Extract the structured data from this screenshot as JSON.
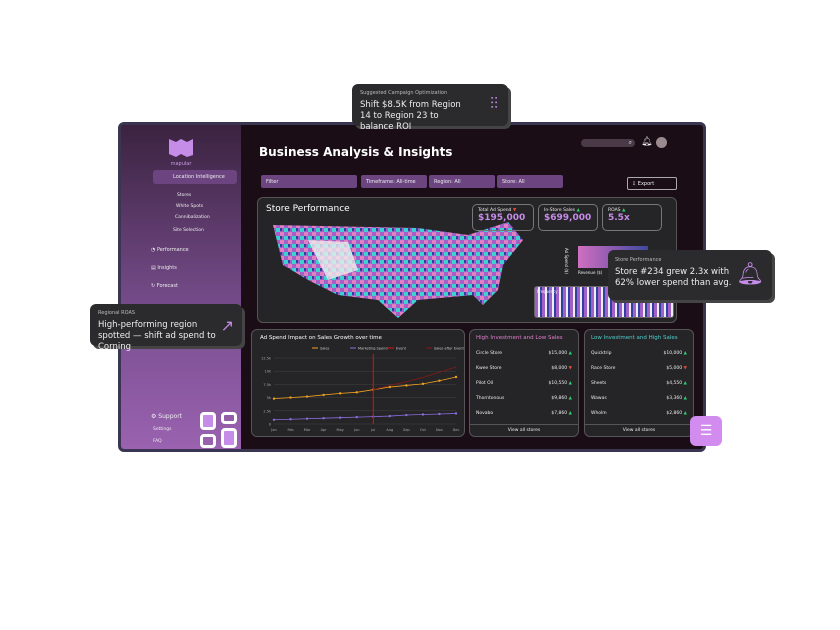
{
  "app": {
    "logo": "mapular",
    "title": "Business Analysis & Insights"
  },
  "sidebar": {
    "section": "Location Intelligence",
    "sub_items": [
      "Stores",
      "White Spots",
      "Cannibalization",
      "Site Selection"
    ],
    "nav": [
      "Performance",
      "Insights",
      "Forecast"
    ],
    "support": "Support",
    "support_items": [
      "Settings",
      "FAQ"
    ]
  },
  "toolbar": {
    "filter": "Filter",
    "timeframe": "Timeframe: All-time",
    "region": "Region: All",
    "store": "Store: All",
    "export": "Export"
  },
  "store_performance": {
    "title": "Store Performance",
    "kpis": [
      {
        "label": "Total Ad Spend",
        "value": "$195,000",
        "trend": "down"
      },
      {
        "label": "In-Store Sales",
        "value": "$699,000",
        "trend": "up"
      },
      {
        "label": "ROAS",
        "value": "5.5x",
        "trend": "up"
      }
    ],
    "legend_y": "Ad Spend ($)",
    "legend_x": "Revenue ($)",
    "frequency": "Frequency"
  },
  "chart_data": {
    "type": "line",
    "title": "Ad Spend Impact on Sales Growth over time",
    "categories": [
      "Jan",
      "Feb",
      "Mar",
      "Apr",
      "May",
      "Jun",
      "Jul",
      "Aug",
      "Sep",
      "Oct",
      "Nov",
      "Dec"
    ],
    "yticks": [
      "0",
      "2.5k",
      "5k",
      "7.5k",
      "10k",
      "12.5k"
    ],
    "ylim": [
      0,
      12500
    ],
    "grid": true,
    "legend_placement": "top",
    "series": [
      {
        "name": "Sales",
        "color": "#f0a020",
        "values": [
          4800,
          5000,
          5200,
          5500,
          5800,
          6000,
          6500,
          7000,
          7300,
          7600,
          8200,
          8900
        ]
      },
      {
        "name": "Marketing Spend",
        "color": "#8a6ee0",
        "values": [
          800,
          900,
          1000,
          1100,
          1200,
          1300,
          1400,
          1500,
          1700,
          1800,
          1900,
          2000
        ]
      },
      {
        "name": "Event",
        "color": "#e01010",
        "x": "Jul"
      },
      {
        "name": "Sales after Event",
        "color": "#8a1a1a",
        "values": [
          null,
          null,
          null,
          null,
          null,
          null,
          6500,
          7300,
          8000,
          8800,
          9800,
          10800
        ]
      }
    ]
  },
  "high_invest": {
    "title": "High Investment and Low Sales",
    "stores": [
      {
        "name": "Circle Store",
        "value": "$15,000",
        "trend": "up"
      },
      {
        "name": "Kwee Store",
        "value": "$8,000",
        "trend": "down"
      },
      {
        "name": "Pilot Oil",
        "value": "$10,550",
        "trend": "up"
      },
      {
        "name": "Thorntonous",
        "value": "$9,860",
        "trend": "up"
      },
      {
        "name": "Novabo",
        "value": "$7,860",
        "trend": "up"
      }
    ],
    "view": "View all stores"
  },
  "low_invest": {
    "title": "Low Investment and High Sales",
    "stores": [
      {
        "name": "Quicktrip",
        "value": "$10,000",
        "trend": "up"
      },
      {
        "name": "Race Store",
        "value": "$5,000",
        "trend": "down"
      },
      {
        "name": "Sheets",
        "value": "$4,550",
        "trend": "up"
      },
      {
        "name": "Wawas",
        "value": "$3,360",
        "trend": "up"
      },
      {
        "name": "Wholm",
        "value": "$2,860",
        "trend": "up"
      }
    ],
    "view": "View all stores"
  },
  "cards": {
    "campaign": {
      "label": "Suggested Campaign Optimization",
      "text": "Shift $8.5K from Region 14 to Region 23 to balance ROI"
    },
    "store": {
      "label": "Store Performance",
      "text": "Store #234 grew 2.3x with 62% lower spend than avg."
    },
    "roas": {
      "label": "Regional ROAS",
      "text": "High-performing region spotted — shift ad spend to Corning"
    }
  },
  "colors": {
    "accent": "#c58ce8",
    "sidebar": "#7a4f90",
    "background": "#1a0d16"
  }
}
